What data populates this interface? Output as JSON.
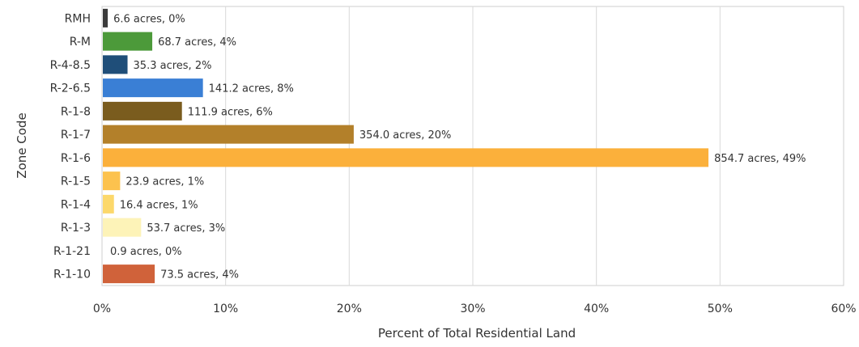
{
  "chart_data": {
    "type": "bar",
    "orientation": "horizontal",
    "categories": [
      "RMH",
      "R-M",
      "R-4-8.5",
      "R-2-6.5",
      "R-1-8",
      "R-1-7",
      "R-1-6",
      "R-1-5",
      "R-1-4",
      "R-1-3",
      "R-1-21",
      "R-1-10"
    ],
    "values": [
      0.4,
      4.0,
      2.0,
      8.1,
      6.4,
      20.3,
      49.0,
      1.4,
      0.9,
      3.1,
      0.1,
      4.2
    ],
    "data_labels": [
      "6.6 acres, 0%",
      "68.7 acres, 4%",
      "35.3 acres, 2%",
      "141.2 acres, 8%",
      "111.9 acres, 6%",
      "354.0 acres, 20%",
      "854.7 acres, 49%",
      "23.9 acres, 1%",
      "16.4 acres, 1%",
      "53.7 acres, 3%",
      "0.9 acres, 0%",
      "73.5 acres, 4%"
    ],
    "colors": [
      "#3b3b3b",
      "#4c9a3a",
      "#1f4e79",
      "#3a7fd5",
      "#7a5c1e",
      "#b3802a",
      "#fbb03b",
      "#fcc24e",
      "#fcd86b",
      "#fdf3b8",
      "#ffffff",
      "#d0623a"
    ],
    "xlabel": "Percent of Total Residential Land",
    "ylabel": "Zone Code",
    "xlim": [
      0,
      60
    ],
    "xticks": [
      "0%",
      "10%",
      "20%",
      "30%",
      "40%",
      "50%",
      "60%"
    ],
    "grid": "vertical"
  }
}
